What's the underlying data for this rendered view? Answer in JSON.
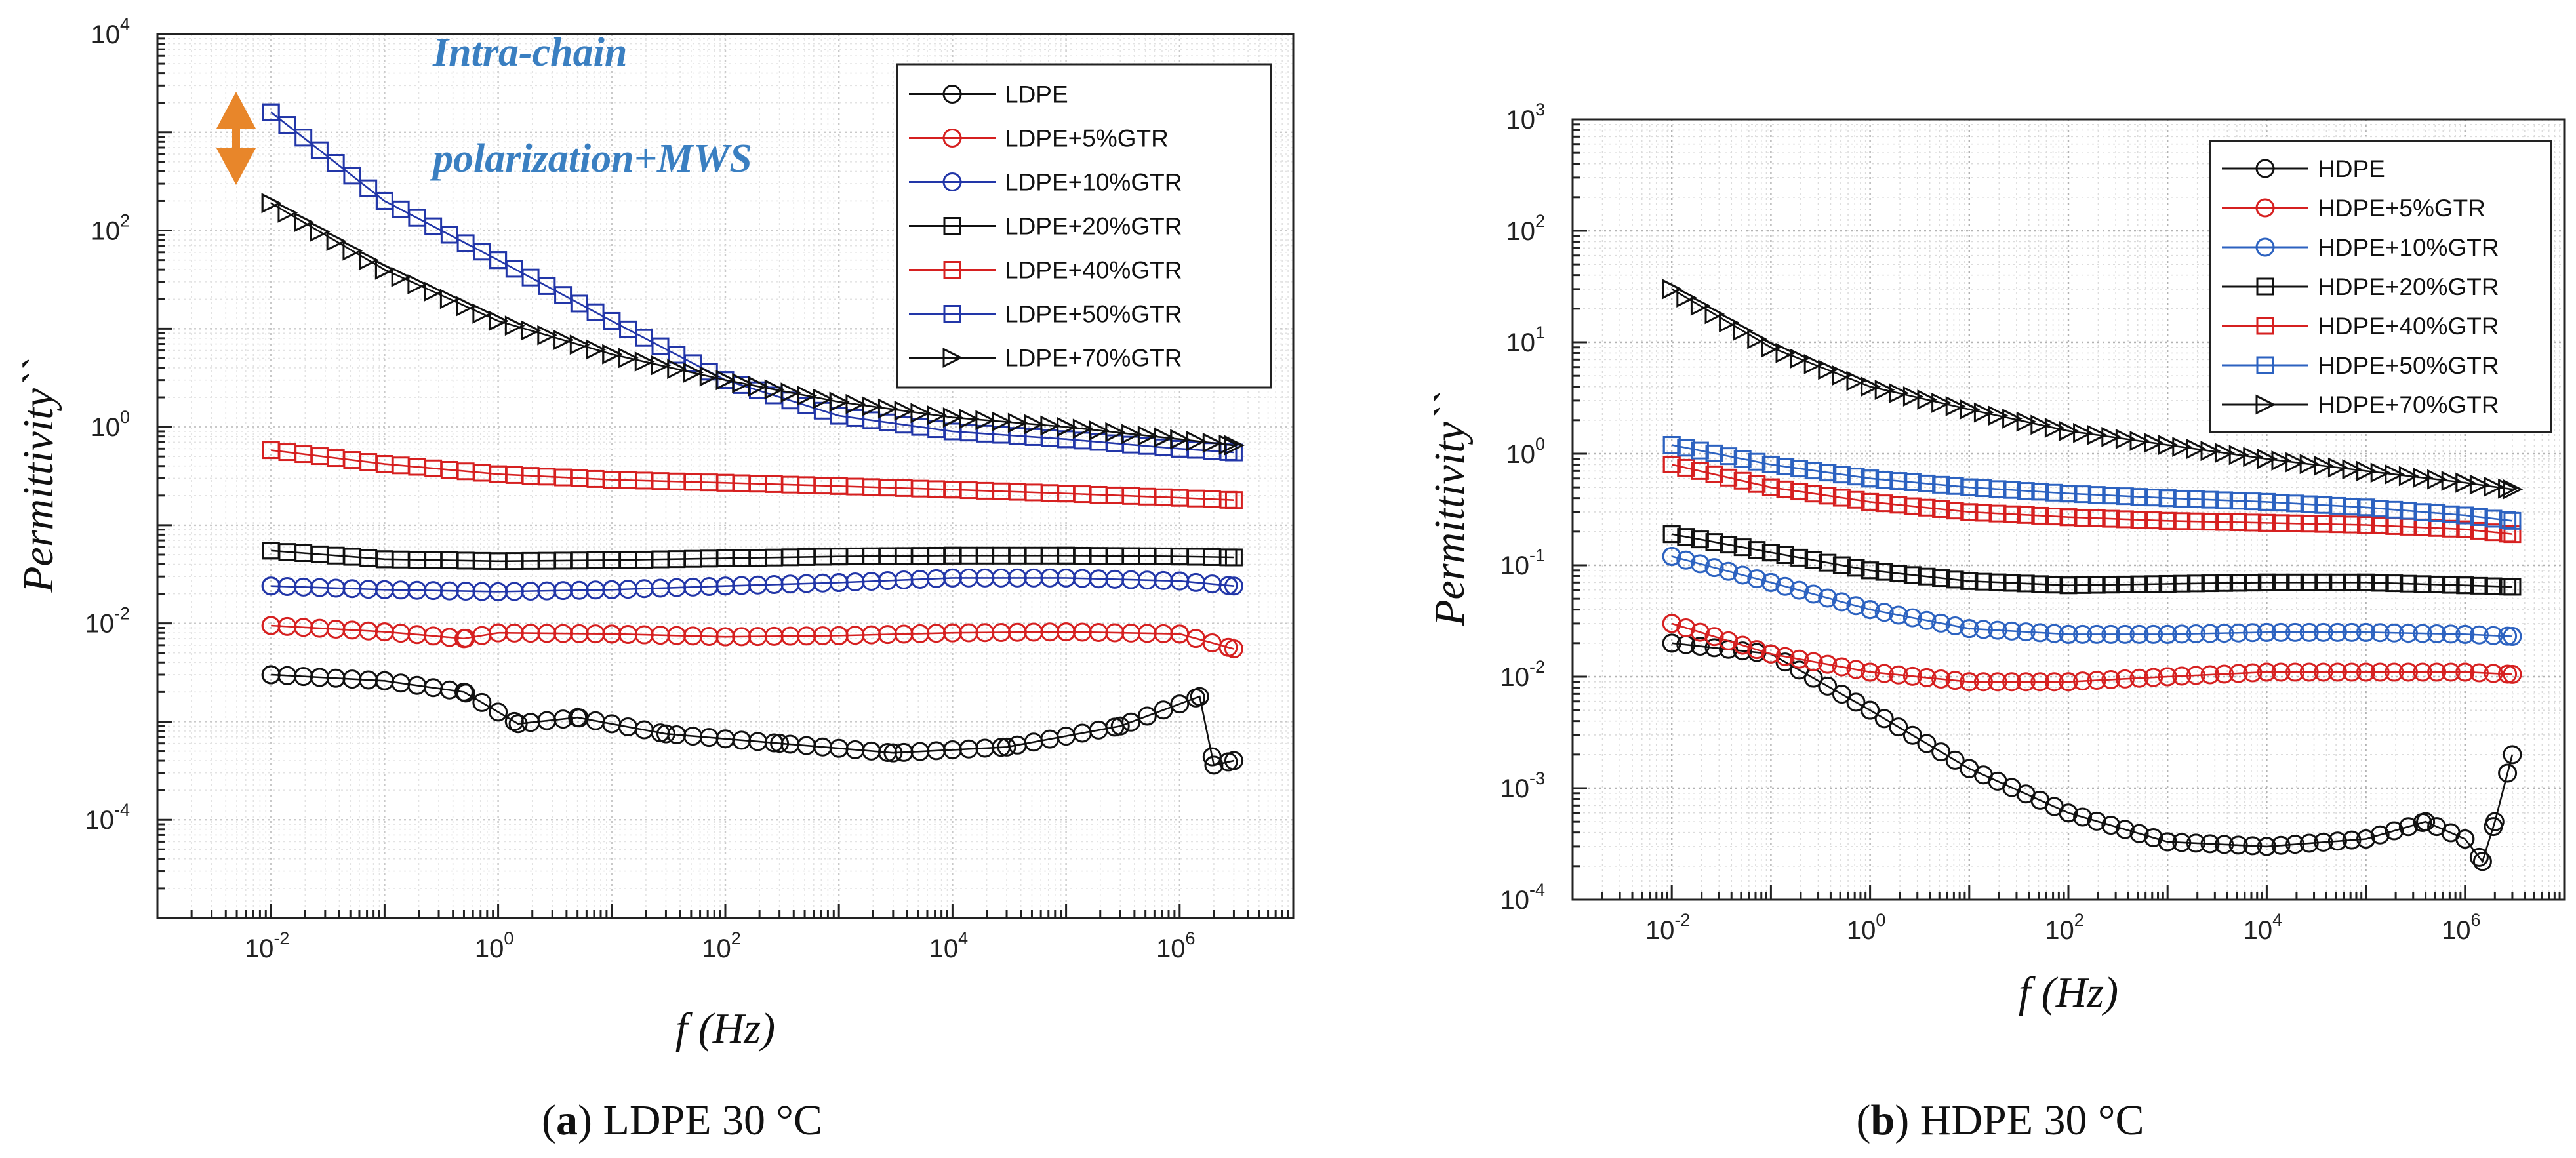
{
  "figure": {
    "captions": [
      {
        "label": "a",
        "text": "LDPE 30 °C"
      },
      {
        "label": "b",
        "text": "HDPE 30 °C"
      }
    ]
  },
  "chart_data": [
    {
      "type": "line",
      "id": "a",
      "title": "",
      "xlabel": "f (Hz)",
      "ylabel": "Permittivity``",
      "xscale": "log",
      "yscale": "log",
      "xlim": [
        0.001,
        10000000
      ],
      "ylim": [
        1e-05,
        10000
      ],
      "xticks": [
        {
          "base": "10",
          "exp": "-2",
          "value": 0.01
        },
        {
          "base": "10",
          "exp": "0",
          "value": 1
        },
        {
          "base": "10",
          "exp": "2",
          "value": 100
        },
        {
          "base": "10",
          "exp": "4",
          "value": 10000
        },
        {
          "base": "10",
          "exp": "6",
          "value": 1000000
        }
      ],
      "yticks": [
        {
          "base": "10",
          "exp": "-4",
          "value": 0.0001
        },
        {
          "base": "10",
          "exp": "-2",
          "value": 0.01
        },
        {
          "base": "10",
          "exp": "0",
          "value": 1
        },
        {
          "base": "10",
          "exp": "2",
          "value": 100
        },
        {
          "base": "10",
          "exp": "4",
          "value": 10000
        }
      ],
      "grid": true,
      "legend_position": "top-right",
      "annotation": {
        "line1": "Intra-chain",
        "line2": "polarization+MWS",
        "arrow_color": "#e8862a"
      },
      "series": [
        {
          "name": "LDPE",
          "color": "#111111",
          "marker": "circle",
          "points": [
            [
              0.01,
              0.003
            ],
            [
              0.1,
              0.0026
            ],
            [
              0.5,
              0.002
            ],
            [
              1.5,
              0.00095
            ],
            [
              5,
              0.0011
            ],
            [
              30,
              0.00075
            ],
            [
              300,
              0.0006
            ],
            [
              3000,
              0.00048
            ],
            [
              30000,
              0.00055
            ],
            [
              300000,
              0.0009
            ],
            [
              1500000,
              0.0018
            ],
            [
              2000000,
              0.00036
            ],
            [
              3000000,
              0.0004
            ]
          ]
        },
        {
          "name": "LDPE+5%GTR",
          "color": "#d62020",
          "marker": "circle",
          "points": [
            [
              0.01,
              0.0095
            ],
            [
              0.1,
              0.0082
            ],
            [
              0.5,
              0.007
            ],
            [
              1,
              0.008
            ],
            [
              10,
              0.0078
            ],
            [
              100,
              0.0073
            ],
            [
              1000,
              0.0075
            ],
            [
              10000,
              0.008
            ],
            [
              100000,
              0.0082
            ],
            [
              1000000,
              0.0078
            ],
            [
              3000000,
              0.0055
            ]
          ]
        },
        {
          "name": "LDPE+10%GTR",
          "color": "#2236a8",
          "marker": "circle",
          "points": [
            [
              0.01,
              0.024
            ],
            [
              0.1,
              0.022
            ],
            [
              1,
              0.021
            ],
            [
              10,
              0.022
            ],
            [
              100,
              0.024
            ],
            [
              1000,
              0.026
            ],
            [
              10000,
              0.029
            ],
            [
              100000,
              0.029
            ],
            [
              1000000,
              0.027
            ],
            [
              3000000,
              0.024
            ]
          ]
        },
        {
          "name": "LDPE+20%GTR",
          "color": "#111111",
          "marker": "square",
          "points": [
            [
              0.01,
              0.055
            ],
            [
              0.1,
              0.045
            ],
            [
              1,
              0.043
            ],
            [
              10,
              0.044
            ],
            [
              100,
              0.046
            ],
            [
              1000,
              0.048
            ],
            [
              10000,
              0.049
            ],
            [
              100000,
              0.049
            ],
            [
              1000000,
              0.048
            ],
            [
              3000000,
              0.047
            ]
          ]
        },
        {
          "name": "LDPE+40%GTR",
          "color": "#d62020",
          "marker": "square",
          "points": [
            [
              0.01,
              0.58
            ],
            [
              0.1,
              0.42
            ],
            [
              1,
              0.33
            ],
            [
              10,
              0.29
            ],
            [
              100,
              0.27
            ],
            [
              1000,
              0.25
            ],
            [
              10000,
              0.23
            ],
            [
              100000,
              0.21
            ],
            [
              1000000,
              0.19
            ],
            [
              3000000,
              0.18
            ]
          ]
        },
        {
          "name": "LDPE+50%GTR",
          "color": "#2236a8",
          "marker": "square",
          "points": [
            [
              0.01,
              1600
            ],
            [
              0.1,
              200
            ],
            [
              1,
              50
            ],
            [
              10,
              12
            ],
            [
              100,
              3.0
            ],
            [
              1000,
              1.3
            ],
            [
              10000,
              0.9
            ],
            [
              100000,
              0.75
            ],
            [
              1000000,
              0.6
            ],
            [
              3000000,
              0.55
            ]
          ]
        },
        {
          "name": "LDPE+70%GTR",
          "color": "#111111",
          "marker": "triangle-right",
          "points": [
            [
              0.01,
              190
            ],
            [
              0.1,
              40
            ],
            [
              1,
              12
            ],
            [
              10,
              5.5
            ],
            [
              100,
              3.0
            ],
            [
              1000,
              1.8
            ],
            [
              10000,
              1.25
            ],
            [
              100000,
              1.0
            ],
            [
              1000000,
              0.75
            ],
            [
              3000000,
              0.65
            ]
          ]
        }
      ]
    },
    {
      "type": "line",
      "id": "b",
      "title": "",
      "xlabel": "f (Hz)",
      "ylabel": "Permittivity``",
      "xscale": "log",
      "yscale": "log",
      "xlim": [
        0.001,
        10000000
      ],
      "ylim": [
        0.0001,
        1000
      ],
      "xticks": [
        {
          "base": "10",
          "exp": "-2",
          "value": 0.01
        },
        {
          "base": "10",
          "exp": "0",
          "value": 1
        },
        {
          "base": "10",
          "exp": "2",
          "value": 100
        },
        {
          "base": "10",
          "exp": "4",
          "value": 10000
        },
        {
          "base": "10",
          "exp": "6",
          "value": 1000000
        }
      ],
      "yticks": [
        {
          "base": "10",
          "exp": "-4",
          "value": 0.0001
        },
        {
          "base": "10",
          "exp": "-3",
          "value": 0.001
        },
        {
          "base": "10",
          "exp": "-2",
          "value": 0.01
        },
        {
          "base": "10",
          "exp": "-1",
          "value": 0.1
        },
        {
          "base": "10",
          "exp": "0",
          "value": 1
        },
        {
          "base": "10",
          "exp": "1",
          "value": 10
        },
        {
          "base": "10",
          "exp": "2",
          "value": 100
        },
        {
          "base": "10",
          "exp": "3",
          "value": 1000
        }
      ],
      "grid": true,
      "legend_position": "top-right",
      "series": [
        {
          "name": "HDPE",
          "color": "#111111",
          "marker": "circle",
          "points": [
            [
              0.01,
              0.02
            ],
            [
              0.1,
              0.016
            ],
            [
              1,
              0.005
            ],
            [
              10,
              0.0015
            ],
            [
              100,
              0.0006
            ],
            [
              1000,
              0.00033
            ],
            [
              10000,
              0.0003
            ],
            [
              100000,
              0.00035
            ],
            [
              400000,
              0.0005
            ],
            [
              1000000,
              0.00035
            ],
            [
              1500000,
              0.00022
            ],
            [
              2000000,
              0.0005
            ],
            [
              3000000,
              0.002
            ]
          ]
        },
        {
          "name": "HDPE+5%GTR",
          "color": "#d62020",
          "marker": "circle",
          "points": [
            [
              0.01,
              0.03
            ],
            [
              0.1,
              0.016
            ],
            [
              1,
              0.011
            ],
            [
              10,
              0.009
            ],
            [
              100,
              0.009
            ],
            [
              1000,
              0.01
            ],
            [
              10000,
              0.011
            ],
            [
              100000,
              0.011
            ],
            [
              1000000,
              0.011
            ],
            [
              3000000,
              0.0105
            ]
          ]
        },
        {
          "name": "HDPE+10%GTR",
          "color": "#2c62c0",
          "marker": "circle",
          "points": [
            [
              0.01,
              0.12
            ],
            [
              0.1,
              0.07
            ],
            [
              1,
              0.04
            ],
            [
              10,
              0.027
            ],
            [
              100,
              0.024
            ],
            [
              1000,
              0.024
            ],
            [
              10000,
              0.025
            ],
            [
              100000,
              0.025
            ],
            [
              1000000,
              0.024
            ],
            [
              3000000,
              0.023
            ]
          ]
        },
        {
          "name": "HDPE+20%GTR",
          "color": "#111111",
          "marker": "square",
          "points": [
            [
              0.01,
              0.19
            ],
            [
              0.1,
              0.13
            ],
            [
              1,
              0.09
            ],
            [
              10,
              0.072
            ],
            [
              100,
              0.066
            ],
            [
              1000,
              0.068
            ],
            [
              10000,
              0.07
            ],
            [
              100000,
              0.07
            ],
            [
              1000000,
              0.066
            ],
            [
              3000000,
              0.064
            ]
          ]
        },
        {
          "name": "HDPE+40%GTR",
          "color": "#d62020",
          "marker": "square",
          "points": [
            [
              0.01,
              0.8
            ],
            [
              0.1,
              0.5
            ],
            [
              1,
              0.37
            ],
            [
              10,
              0.3
            ],
            [
              100,
              0.27
            ],
            [
              1000,
              0.25
            ],
            [
              10000,
              0.24
            ],
            [
              100000,
              0.23
            ],
            [
              1000000,
              0.21
            ],
            [
              3000000,
              0.19
            ]
          ]
        },
        {
          "name": "HDPE+50%GTR",
          "color": "#2c62c0",
          "marker": "square",
          "points": [
            [
              0.01,
              1.2
            ],
            [
              0.1,
              0.8
            ],
            [
              1,
              0.6
            ],
            [
              10,
              0.5
            ],
            [
              100,
              0.44
            ],
            [
              1000,
              0.4
            ],
            [
              10000,
              0.37
            ],
            [
              100000,
              0.33
            ],
            [
              1000000,
              0.28
            ],
            [
              3000000,
              0.25
            ]
          ]
        },
        {
          "name": "HDPE+70%GTR",
          "color": "#111111",
          "marker": "triangle-right",
          "points": [
            [
              0.01,
              30
            ],
            [
              0.1,
              9.0
            ],
            [
              1,
              4.0
            ],
            [
              10,
              2.5
            ],
            [
              100,
              1.6
            ],
            [
              1000,
              1.2
            ],
            [
              10000,
              0.9
            ],
            [
              100000,
              0.7
            ],
            [
              1000000,
              0.55
            ],
            [
              3000000,
              0.48
            ]
          ]
        }
      ]
    }
  ]
}
